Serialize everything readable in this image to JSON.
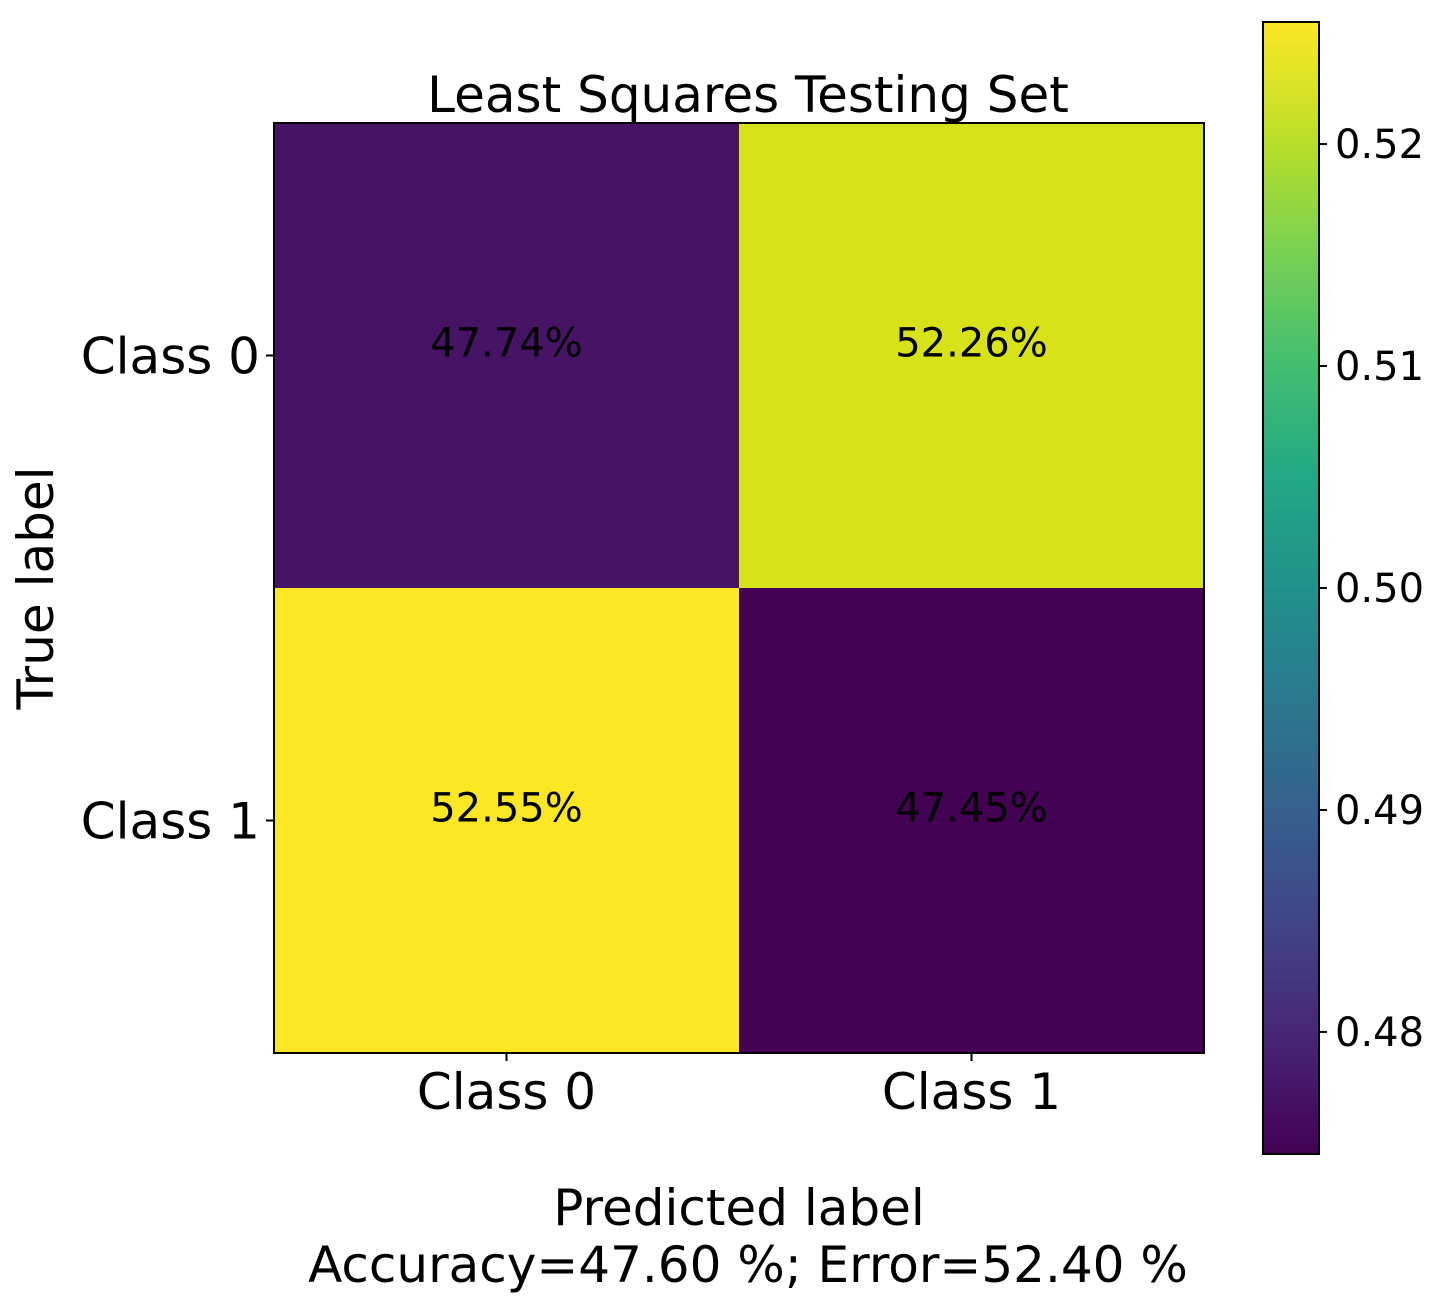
{
  "chart_data": {
    "type": "heatmap",
    "title": "Least Squares Testing Set",
    "xlabel": "Predicted label",
    "xlabel_sub": "Accuracy=47.60 %; Error=52.40 %",
    "ylabel": "True label",
    "x_categories": [
      "Class 0",
      "Class 1"
    ],
    "y_categories": [
      "Class 0",
      "Class 1"
    ],
    "values": [
      [
        47.74,
        52.26
      ],
      [
        52.55,
        47.45
      ]
    ],
    "cell_labels": [
      [
        "47.74%",
        "52.26%"
      ],
      [
        "52.55%",
        "47.45%"
      ]
    ],
    "cell_colors": [
      [
        "#471365",
        "#d8e219"
      ],
      [
        "#fde725",
        "#440154"
      ]
    ],
    "colorbar": {
      "colormap": "viridis",
      "range": [
        0.4745,
        0.5255
      ],
      "ticks": [
        0.48,
        0.49,
        0.5,
        0.51,
        0.52
      ],
      "tick_labels": [
        "0.48",
        "0.49",
        "0.50",
        "0.51",
        "0.52"
      ]
    }
  }
}
